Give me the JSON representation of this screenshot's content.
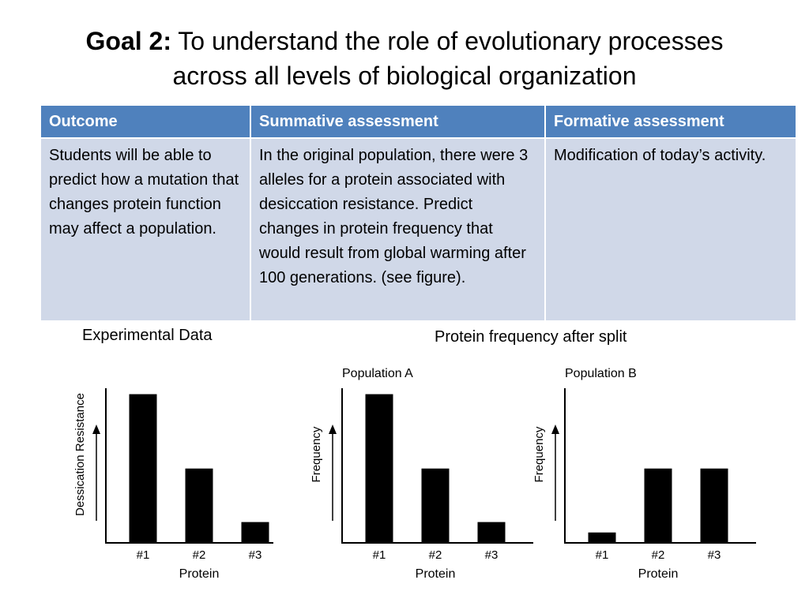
{
  "slide": {
    "title_bold": "Goal 2:",
    "title_line1": "To understand the role of evolutionary processes",
    "title_line2": "across all levels of biological organization"
  },
  "table": {
    "headers": [
      "Outcome",
      "Summative assessment",
      "Formative assessment"
    ],
    "row": [
      "Students will be able to predict how a mutation that changes protein function may affect a population.",
      "In the original population, there were 3 alleles for a protein associated with desiccation resistance. Predict changes in protein frequency that would result from global warming after 100 generations. (see figure).",
      "Modification of today’s activity."
    ],
    "colors": {
      "header_bg": "#4f81bd",
      "cell_bg": "#d0d8e8"
    }
  },
  "captions": {
    "experimental": "Experimental Data",
    "after_split": "Protein frequency after split"
  },
  "chart_data": [
    {
      "type": "bar",
      "title": "",
      "categories": [
        "#1",
        "#2",
        "#3"
      ],
      "values": [
        1.0,
        0.5,
        0.14
      ],
      "xlabel": "Protein",
      "ylabel": "Dessication Resistance",
      "ylim": [
        0,
        1.04
      ]
    },
    {
      "type": "bar",
      "title": "Population A",
      "categories": [
        "#1",
        "#2",
        "#3"
      ],
      "values": [
        1.0,
        0.5,
        0.14
      ],
      "xlabel": "Protein",
      "ylabel": "Frequency",
      "ylim": [
        0,
        1.04
      ]
    },
    {
      "type": "bar",
      "title": "Population B",
      "categories": [
        "#1",
        "#2",
        "#3"
      ],
      "values": [
        0.07,
        0.5,
        0.5
      ],
      "xlabel": "Protein",
      "ylabel": "Frequency",
      "ylim": [
        0,
        1.04
      ]
    }
  ]
}
